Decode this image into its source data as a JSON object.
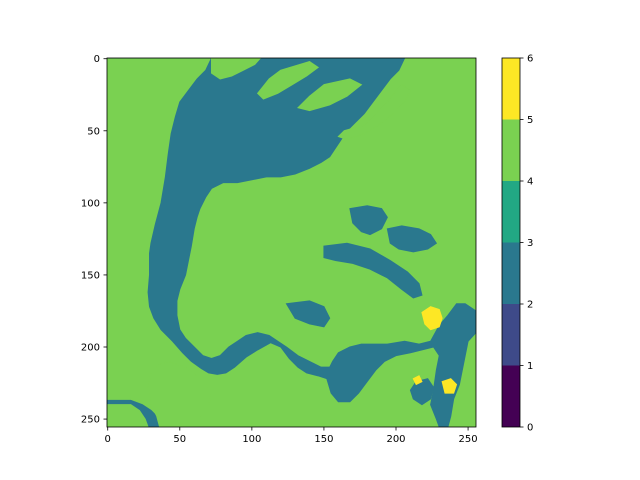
{
  "chart_data": {
    "type": "heatmap",
    "title": "",
    "xlabel": "",
    "ylabel": "",
    "x_range": [
      0,
      255
    ],
    "y_range": [
      0,
      255
    ],
    "y_inverted": true,
    "x_ticks": [
      0,
      50,
      100,
      150,
      200,
      250
    ],
    "y_ticks": [
      0,
      50,
      100,
      150,
      200,
      250
    ],
    "grid": false,
    "colorbar": {
      "ticks": [
        0,
        1,
        2,
        3,
        4,
        5,
        6
      ],
      "bins": [
        {
          "range": [
            0,
            1
          ],
          "color": "#440154"
        },
        {
          "range": [
            1,
            2
          ],
          "color": "#3e4a89"
        },
        {
          "range": [
            2,
            3
          ],
          "color": "#2a788e"
        },
        {
          "range": [
            3,
            4
          ],
          "color": "#22a884"
        },
        {
          "range": [
            4,
            5
          ],
          "color": "#7ad151"
        },
        {
          "range": [
            5,
            6
          ],
          "color": "#fde725"
        }
      ]
    },
    "background_class": 4,
    "regions": [
      {
        "class": 2,
        "points": [
          [
            0,
            0
          ],
          [
            72,
            0
          ],
          [
            68,
            8
          ],
          [
            62,
            14
          ],
          [
            56,
            22
          ],
          [
            50,
            30
          ],
          [
            47,
            40
          ],
          [
            44,
            52
          ],
          [
            42,
            66
          ],
          [
            40,
            82
          ],
          [
            37,
            100
          ],
          [
            33,
            115
          ],
          [
            30,
            128
          ],
          [
            29,
            135
          ],
          [
            29,
            150
          ],
          [
            28,
            162
          ],
          [
            29,
            172
          ],
          [
            32,
            180
          ],
          [
            37,
            188
          ],
          [
            45,
            196
          ],
          [
            52,
            204
          ],
          [
            58,
            210
          ],
          [
            65,
            215
          ],
          [
            70,
            218
          ],
          [
            76,
            219
          ],
          [
            82,
            218
          ],
          [
            88,
            214
          ],
          [
            96,
            207
          ],
          [
            104,
            202
          ],
          [
            113,
            197
          ],
          [
            120,
            200
          ],
          [
            126,
            208
          ],
          [
            132,
            214
          ],
          [
            138,
            218
          ],
          [
            146,
            220
          ],
          [
            152,
            222
          ],
          [
            155,
            232
          ],
          [
            160,
            238
          ],
          [
            168,
            238
          ],
          [
            174,
            232
          ],
          [
            180,
            224
          ],
          [
            186,
            216
          ],
          [
            192,
            210
          ],
          [
            200,
            206
          ],
          [
            210,
            204
          ],
          [
            218,
            202
          ],
          [
            226,
            200
          ],
          [
            230,
            206
          ],
          [
            228,
            216
          ],
          [
            226,
            230
          ],
          [
            224,
            240
          ],
          [
            228,
            250
          ],
          [
            230,
            255
          ],
          [
            236,
            255
          ],
          [
            238,
            248
          ],
          [
            240,
            236
          ],
          [
            244,
            226
          ],
          [
            246,
            216
          ],
          [
            248,
            206
          ],
          [
            250,
            196
          ],
          [
            255,
            190
          ],
          [
            255,
            175
          ],
          [
            248,
            170
          ],
          [
            242,
            170
          ],
          [
            236,
            178
          ],
          [
            230,
            185
          ],
          [
            224,
            196
          ],
          [
            216,
            198
          ],
          [
            206,
            196
          ],
          [
            194,
            198
          ],
          [
            184,
            198
          ],
          [
            176,
            198
          ],
          [
            168,
            200
          ],
          [
            160,
            204
          ],
          [
            156,
            210
          ],
          [
            154,
            214
          ],
          [
            148,
            214
          ],
          [
            140,
            210
          ],
          [
            132,
            206
          ],
          [
            124,
            200
          ],
          [
            118,
            196
          ],
          [
            112,
            192
          ],
          [
            104,
            190
          ],
          [
            96,
            192
          ],
          [
            90,
            196
          ],
          [
            84,
            200
          ],
          [
            78,
            206
          ],
          [
            72,
            208
          ],
          [
            66,
            206
          ],
          [
            60,
            200
          ],
          [
            54,
            194
          ],
          [
            50,
            188
          ],
          [
            48,
            178
          ],
          [
            48,
            168
          ],
          [
            50,
            160
          ],
          [
            54,
            150
          ],
          [
            56,
            140
          ],
          [
            58,
            130
          ],
          [
            60,
            118
          ],
          [
            62,
            110
          ],
          [
            64,
            104
          ],
          [
            68,
            96
          ],
          [
            72,
            90
          ],
          [
            80,
            86
          ],
          [
            90,
            86
          ],
          [
            100,
            84
          ],
          [
            110,
            82
          ],
          [
            120,
            82
          ],
          [
            130,
            80
          ],
          [
            140,
            76
          ],
          [
            148,
            72
          ],
          [
            154,
            68
          ],
          [
            158,
            62
          ],
          [
            162,
            56
          ],
          [
            166,
            50
          ],
          [
            172,
            44
          ],
          [
            178,
            38
          ],
          [
            184,
            30
          ],
          [
            190,
            22
          ],
          [
            196,
            14
          ],
          [
            202,
            8
          ],
          [
            206,
            0
          ]
        ]
      },
      {
        "class": 2,
        "points": [
          [
            0,
            237
          ],
          [
            16,
            237
          ],
          [
            24,
            240
          ],
          [
            30,
            244
          ],
          [
            34,
            248
          ],
          [
            36,
            255
          ],
          [
            0,
            255
          ]
        ]
      },
      {
        "class": 4,
        "points": [
          [
            72,
            0
          ],
          [
            106,
            0
          ],
          [
            102,
            4
          ],
          [
            94,
            8
          ],
          [
            86,
            12
          ],
          [
            78,
            14
          ],
          [
            72,
            10
          ]
        ]
      },
      {
        "class": 4,
        "points": [
          [
            120,
            8
          ],
          [
            140,
            2
          ],
          [
            146,
            6
          ],
          [
            138,
            12
          ],
          [
            128,
            18
          ],
          [
            118,
            24
          ],
          [
            108,
            28
          ],
          [
            104,
            24
          ],
          [
            112,
            14
          ]
        ]
      },
      {
        "class": 4,
        "points": [
          [
            150,
            18
          ],
          [
            168,
            14
          ],
          [
            176,
            18
          ],
          [
            166,
            26
          ],
          [
            154,
            32
          ],
          [
            140,
            36
          ],
          [
            132,
            34
          ],
          [
            140,
            26
          ]
        ]
      },
      {
        "class": 4,
        "points": [
          [
            164,
            50
          ],
          [
            178,
            46
          ],
          [
            186,
            38
          ],
          [
            194,
            30
          ],
          [
            200,
            22
          ],
          [
            204,
            18
          ],
          [
            210,
            22
          ],
          [
            206,
            30
          ],
          [
            198,
            38
          ],
          [
            188,
            46
          ],
          [
            178,
            52
          ],
          [
            166,
            56
          ],
          [
            160,
            54
          ]
        ]
      },
      {
        "class": 4,
        "points": [
          [
            0,
            240
          ],
          [
            16,
            240
          ],
          [
            22,
            244
          ],
          [
            26,
            250
          ],
          [
            28,
            255
          ],
          [
            0,
            255
          ]
        ]
      },
      {
        "class": 4,
        "points": [
          [
            42,
            210
          ],
          [
            54,
            214
          ],
          [
            62,
            220
          ],
          [
            68,
            226
          ],
          [
            72,
            232
          ],
          [
            70,
            240
          ],
          [
            64,
            248
          ],
          [
            60,
            255
          ],
          [
            36,
            255
          ],
          [
            34,
            248
          ],
          [
            30,
            240
          ],
          [
            28,
            228
          ],
          [
            30,
            218
          ],
          [
            36,
            212
          ]
        ]
      },
      {
        "class": 2,
        "points": [
          [
            168,
            104
          ],
          [
            180,
            102
          ],
          [
            190,
            104
          ],
          [
            194,
            110
          ],
          [
            190,
            118
          ],
          [
            182,
            122
          ],
          [
            176,
            120
          ],
          [
            170,
            114
          ]
        ]
      },
      {
        "class": 2,
        "points": [
          [
            194,
            118
          ],
          [
            204,
            116
          ],
          [
            216,
            118
          ],
          [
            224,
            122
          ],
          [
            228,
            128
          ],
          [
            222,
            132
          ],
          [
            212,
            134
          ],
          [
            202,
            132
          ],
          [
            196,
            128
          ]
        ]
      },
      {
        "class": 2,
        "points": [
          [
            150,
            130
          ],
          [
            166,
            128
          ],
          [
            182,
            132
          ],
          [
            196,
            140
          ],
          [
            208,
            148
          ],
          [
            216,
            156
          ],
          [
            218,
            164
          ],
          [
            212,
            166
          ],
          [
            204,
            160
          ],
          [
            194,
            152
          ],
          [
            182,
            146
          ],
          [
            170,
            142
          ],
          [
            158,
            140
          ],
          [
            150,
            138
          ]
        ]
      },
      {
        "class": 2,
        "points": [
          [
            124,
            170
          ],
          [
            140,
            168
          ],
          [
            150,
            172
          ],
          [
            154,
            180
          ],
          [
            150,
            186
          ],
          [
            140,
            184
          ],
          [
            130,
            180
          ]
        ]
      },
      {
        "class": 2,
        "points": [
          [
            214,
            224
          ],
          [
            222,
            222
          ],
          [
            226,
            228
          ],
          [
            224,
            236
          ],
          [
            218,
            240
          ],
          [
            212,
            236
          ],
          [
            210,
            230
          ]
        ]
      },
      {
        "class": 5,
        "points": [
          [
            218,
            176
          ],
          [
            224,
            172
          ],
          [
            230,
            174
          ],
          [
            232,
            180
          ],
          [
            230,
            186
          ],
          [
            224,
            188
          ],
          [
            220,
            184
          ]
        ]
      },
      {
        "class": 5,
        "points": [
          [
            232,
            224
          ],
          [
            238,
            222
          ],
          [
            242,
            226
          ],
          [
            240,
            232
          ],
          [
            234,
            232
          ]
        ]
      },
      {
        "class": 5,
        "points": [
          [
            212,
            222
          ],
          [
            216,
            220
          ],
          [
            218,
            224
          ],
          [
            214,
            226
          ]
        ]
      }
    ]
  }
}
